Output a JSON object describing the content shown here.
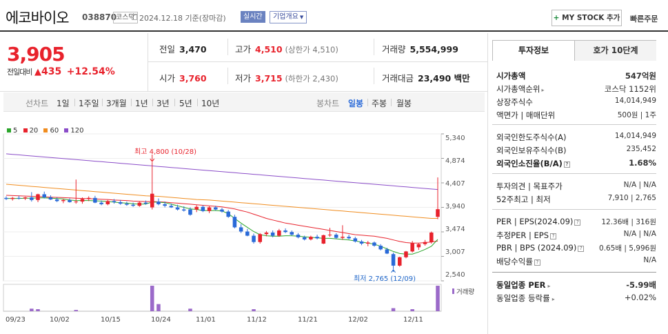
{
  "header": {
    "name": "에코바이오",
    "code": "038870",
    "market": "코스닥",
    "date": "2024.12.18  기준(장마감)",
    "realtime": "실시간",
    "overview": "기업개요",
    "my_stock": "MY STOCK 추가",
    "quick_order": "빠른주문"
  },
  "price": {
    "current": "3,905",
    "change_label": "전일대비",
    "change": "435",
    "change_pct": "+12.54%"
  },
  "quote": {
    "prev_label": "전일",
    "prev": "3,470",
    "high_label": "고가",
    "high": "4,510",
    "high_limit": "(상한가 4,510)",
    "volume_label": "거래량",
    "volume": "5,554,999",
    "open_label": "시가",
    "open": "3,760",
    "low_label": "저가",
    "low": "3,715",
    "low_limit": "(하한가 2,430)",
    "amount_label": "거래대금",
    "amount": "23,490 백만"
  },
  "period_tabs": [
    "선차트",
    "1일",
    "1주일",
    "3개월",
    "1년",
    "3년",
    "5년",
    "10년"
  ],
  "candle_tabs": [
    "봉차트",
    "일봉",
    "주봉",
    "월봉"
  ],
  "chart_data": {
    "type": "candlestick",
    "legend": [
      {
        "name": "5",
        "color": "#2aa52a"
      },
      {
        "name": "20",
        "color": "#e8222c"
      },
      {
        "name": "60",
        "color": "#f08c1e"
      },
      {
        "name": "120",
        "color": "#8a4cc8"
      }
    ],
    "y_ticks": [
      "5,340",
      "4,874",
      "4,407",
      "3,940",
      "3,474",
      "3,007",
      "2,540"
    ],
    "ylim": [
      2540,
      5340
    ],
    "x_ticks": [
      "09/23",
      "10/02",
      "10/15",
      "10/24",
      "11/01",
      "11/12",
      "11/21",
      "12/02",
      "12/11"
    ],
    "high_annotation": "최고 4,800 (10/28)",
    "low_annotation": "최저 2,765 (12/09)",
    "volume_label": "거래량",
    "candles": [
      [
        4120,
        4150,
        4080,
        4100,
        0
      ],
      [
        4100,
        4140,
        4070,
        4120,
        0
      ],
      [
        4120,
        4160,
        4090,
        4110,
        0
      ],
      [
        4110,
        4140,
        4080,
        4130,
        0
      ],
      [
        4130,
        4230,
        4050,
        4080,
        10
      ],
      [
        4080,
        4200,
        4040,
        4190,
        8
      ],
      [
        4190,
        4240,
        4110,
        4130,
        0
      ],
      [
        4130,
        4170,
        4080,
        4090,
        0
      ],
      [
        4090,
        4130,
        4040,
        4060,
        0
      ],
      [
        4060,
        4100,
        4020,
        4080,
        0
      ],
      [
        4080,
        4110,
        4030,
        4040,
        0
      ],
      [
        4040,
        4470,
        4010,
        4050,
        5
      ],
      [
        4050,
        4130,
        4010,
        4100,
        0
      ],
      [
        4100,
        4150,
        4060,
        4120,
        0
      ],
      [
        4120,
        4160,
        4020,
        4030,
        0
      ],
      [
        4030,
        4070,
        3980,
        4000,
        0
      ],
      [
        4000,
        4080,
        3980,
        4060,
        0
      ],
      [
        4060,
        4100,
        4010,
        4040,
        0
      ],
      [
        4040,
        4080,
        3990,
        4010,
        0
      ],
      [
        4010,
        4050,
        3970,
        3990,
        0
      ],
      [
        3990,
        4030,
        3950,
        3970,
        0
      ],
      [
        3970,
        4050,
        3950,
        4030,
        0
      ],
      [
        4030,
        4070,
        3990,
        4010,
        0
      ],
      [
        3940,
        4800,
        3900,
        4200,
        100
      ],
      [
        4050,
        4110,
        3980,
        4000,
        28
      ],
      [
        4000,
        4050,
        3940,
        3970,
        0
      ],
      [
        3970,
        4010,
        3930,
        3940,
        0
      ],
      [
        3940,
        3990,
        3880,
        3900,
        0
      ],
      [
        3900,
        3960,
        3860,
        3880,
        0
      ],
      [
        3900,
        3940,
        3780,
        3800,
        10
      ],
      [
        3900,
        3980,
        3850,
        3950,
        0
      ],
      [
        3950,
        3980,
        3850,
        3870,
        0
      ],
      [
        3870,
        3960,
        3830,
        3940,
        0
      ],
      [
        3940,
        3970,
        3880,
        3900,
        0
      ],
      [
        3900,
        3930,
        3840,
        3860,
        0
      ],
      [
        3860,
        3890,
        3740,
        3760,
        0
      ],
      [
        3760,
        3800,
        3540,
        3560,
        0
      ],
      [
        3560,
        3620,
        3450,
        3480,
        0
      ],
      [
        3480,
        3530,
        3390,
        3400,
        0
      ],
      [
        3400,
        3440,
        3250,
        3280,
        8
      ],
      [
        3280,
        3450,
        3250,
        3430,
        0
      ],
      [
        3430,
        3490,
        3390,
        3460,
        0
      ],
      [
        3460,
        3500,
        3370,
        3400,
        0
      ],
      [
        3400,
        3530,
        3380,
        3500,
        0
      ],
      [
        3500,
        3540,
        3450,
        3470,
        0
      ],
      [
        3470,
        3500,
        3400,
        3420,
        0
      ],
      [
        3420,
        3450,
        3350,
        3370,
        0
      ],
      [
        3370,
        3400,
        3310,
        3330,
        0
      ],
      [
        3330,
        3400,
        3310,
        3380,
        0
      ],
      [
        3380,
        3420,
        3330,
        3350,
        0
      ],
      [
        3250,
        3420,
        3240,
        3410,
        0
      ],
      [
        3410,
        3550,
        3380,
        3420,
        0
      ],
      [
        3420,
        3450,
        3340,
        3360,
        0
      ],
      [
        3360,
        3600,
        3320,
        3380,
        0
      ],
      [
        3380,
        3420,
        3330,
        3350,
        0
      ],
      [
        3350,
        3380,
        3270,
        3290,
        0
      ],
      [
        3290,
        3320,
        3220,
        3250,
        0
      ],
      [
        3250,
        3300,
        3200,
        3270,
        0
      ],
      [
        3270,
        3290,
        3190,
        3210,
        0
      ],
      [
        3210,
        3240,
        3120,
        3140,
        0
      ],
      [
        3140,
        3170,
        3050,
        3060,
        0
      ],
      [
        3050,
        3080,
        2765,
        2830,
        12
      ],
      [
        2830,
        3000,
        2810,
        2990,
        0
      ],
      [
        2990,
        3110,
        2970,
        3100,
        0
      ],
      [
        3100,
        3300,
        3080,
        3260,
        8
      ],
      [
        3180,
        3260,
        3130,
        3240,
        0
      ],
      [
        3240,
        3320,
        3210,
        3280,
        0
      ],
      [
        3280,
        3480,
        3250,
        3460,
        0
      ],
      [
        3760,
        4510,
        3715,
        3905,
        100
      ]
    ],
    "ma5": [
      4110,
      4110,
      4110,
      4115,
      4115,
      4120,
      4120,
      4115,
      4110,
      4100,
      4080,
      4070,
      4070,
      4070,
      4065,
      4060,
      4050,
      4040,
      4030,
      4020,
      4010,
      4000,
      4005,
      4040,
      4040,
      4030,
      4000,
      3970,
      3940,
      3910,
      3900,
      3880,
      3880,
      3880,
      3870,
      3820,
      3730,
      3640,
      3560,
      3480,
      3420,
      3400,
      3390,
      3390,
      3400,
      3400,
      3390,
      3380,
      3370,
      3360,
      3350,
      3350,
      3340,
      3330,
      3320,
      3300,
      3280,
      3260,
      3240,
      3200,
      3150,
      3100,
      3060,
      3050,
      3050,
      3090,
      3140,
      3200,
      3330
    ],
    "ma20": [
      4170,
      4165,
      4160,
      4155,
      4150,
      4145,
      4140,
      4135,
      4130,
      4125,
      4120,
      4115,
      4110,
      4105,
      4100,
      4095,
      4090,
      4080,
      4075,
      4070,
      4060,
      4055,
      4050,
      4050,
      4045,
      4040,
      4030,
      4020,
      4010,
      4000,
      3990,
      3980,
      3970,
      3960,
      3950,
      3930,
      3910,
      3880,
      3850,
      3810,
      3770,
      3730,
      3700,
      3670,
      3640,
      3620,
      3600,
      3580,
      3560,
      3540,
      3520,
      3500,
      3480,
      3460,
      3440,
      3420,
      3410,
      3400,
      3390,
      3370,
      3350,
      3320,
      3290,
      3270,
      3260,
      3260,
      3270,
      3280,
      3300
    ],
    "ma60": [
      4380,
      4370,
      4360,
      4350,
      4340,
      4330,
      4320,
      4310,
      4300,
      4290,
      4280,
      4270,
      4260,
      4250,
      4240,
      4230,
      4220,
      4210,
      4200,
      4190,
      4180,
      4170,
      4160,
      4155,
      4150,
      4140,
      4130,
      4120,
      4110,
      4100,
      4090,
      4085,
      4080,
      4070,
      4060,
      4050,
      4040,
      4030,
      4020,
      4010,
      4000,
      3990,
      3980,
      3970,
      3960,
      3950,
      3940,
      3930,
      3920,
      3910,
      3900,
      3890,
      3880,
      3870,
      3860,
      3850,
      3840,
      3830,
      3820,
      3810,
      3800,
      3790,
      3780,
      3770,
      3760,
      3750,
      3740,
      3730,
      3730
    ],
    "ma120": [
      4960,
      4950,
      4940,
      4930,
      4920,
      4910,
      4900,
      4890,
      4880,
      4870,
      4860,
      4850,
      4840,
      4830,
      4820,
      4810,
      4800,
      4790,
      4780,
      4770,
      4760,
      4750,
      4740,
      4730,
      4720,
      4710,
      4700,
      4690,
      4680,
      4670,
      4660,
      4650,
      4640,
      4630,
      4620,
      4610,
      4600,
      4590,
      4580,
      4570,
      4560,
      4550,
      4540,
      4530,
      4520,
      4510,
      4500,
      4490,
      4480,
      4470,
      4460,
      4450,
      4440,
      4430,
      4420,
      4410,
      4400,
      4390,
      4380,
      4370,
      4360,
      4350,
      4340,
      4330,
      4320,
      4310,
      4300,
      4290,
      4280
    ]
  },
  "info": {
    "tab_invest": "투자정보",
    "tab_hoga": "호가 10단계",
    "market_cap_label": "시가총액",
    "market_cap": "547억원",
    "market_rank_label": "시가총액순위",
    "market_rank": "코스닥 1152위",
    "shares_label": "상장주식수",
    "shares": "14,014,949",
    "par_label": "액면가 | 매매단위",
    "par": "500원 | 1주",
    "foreign_limit_label": "외국인한도주식수(A)",
    "foreign_limit": "14,014,949",
    "foreign_hold_label": "외국인보유주식수(B)",
    "foreign_hold": "235,452",
    "foreign_ratio_label": "외국인소진율(B/A)",
    "foreign_ratio": "1.68%",
    "opinion_label": "투자의견 | 목표주가",
    "opinion": "N/A | N/A",
    "week52_label": "52주최고 | 최저",
    "week52": "7,910 | 2,765",
    "per_label": "PER | EPS(2024.09)",
    "per": "12.36배 | 316원",
    "est_per_label": "추정PER | EPS",
    "est_per": "N/A | N/A",
    "pbr_label": "PBR | BPS (2024.09)",
    "pbr": "0.65배 | 5,996원",
    "dividend_label": "배당수익률",
    "dividend": "N/A",
    "ind_per_label": "동일업종 PER",
    "ind_per": "-5.99배",
    "ind_change_label": "동일업종 등락률",
    "ind_change": "+0.02%"
  }
}
